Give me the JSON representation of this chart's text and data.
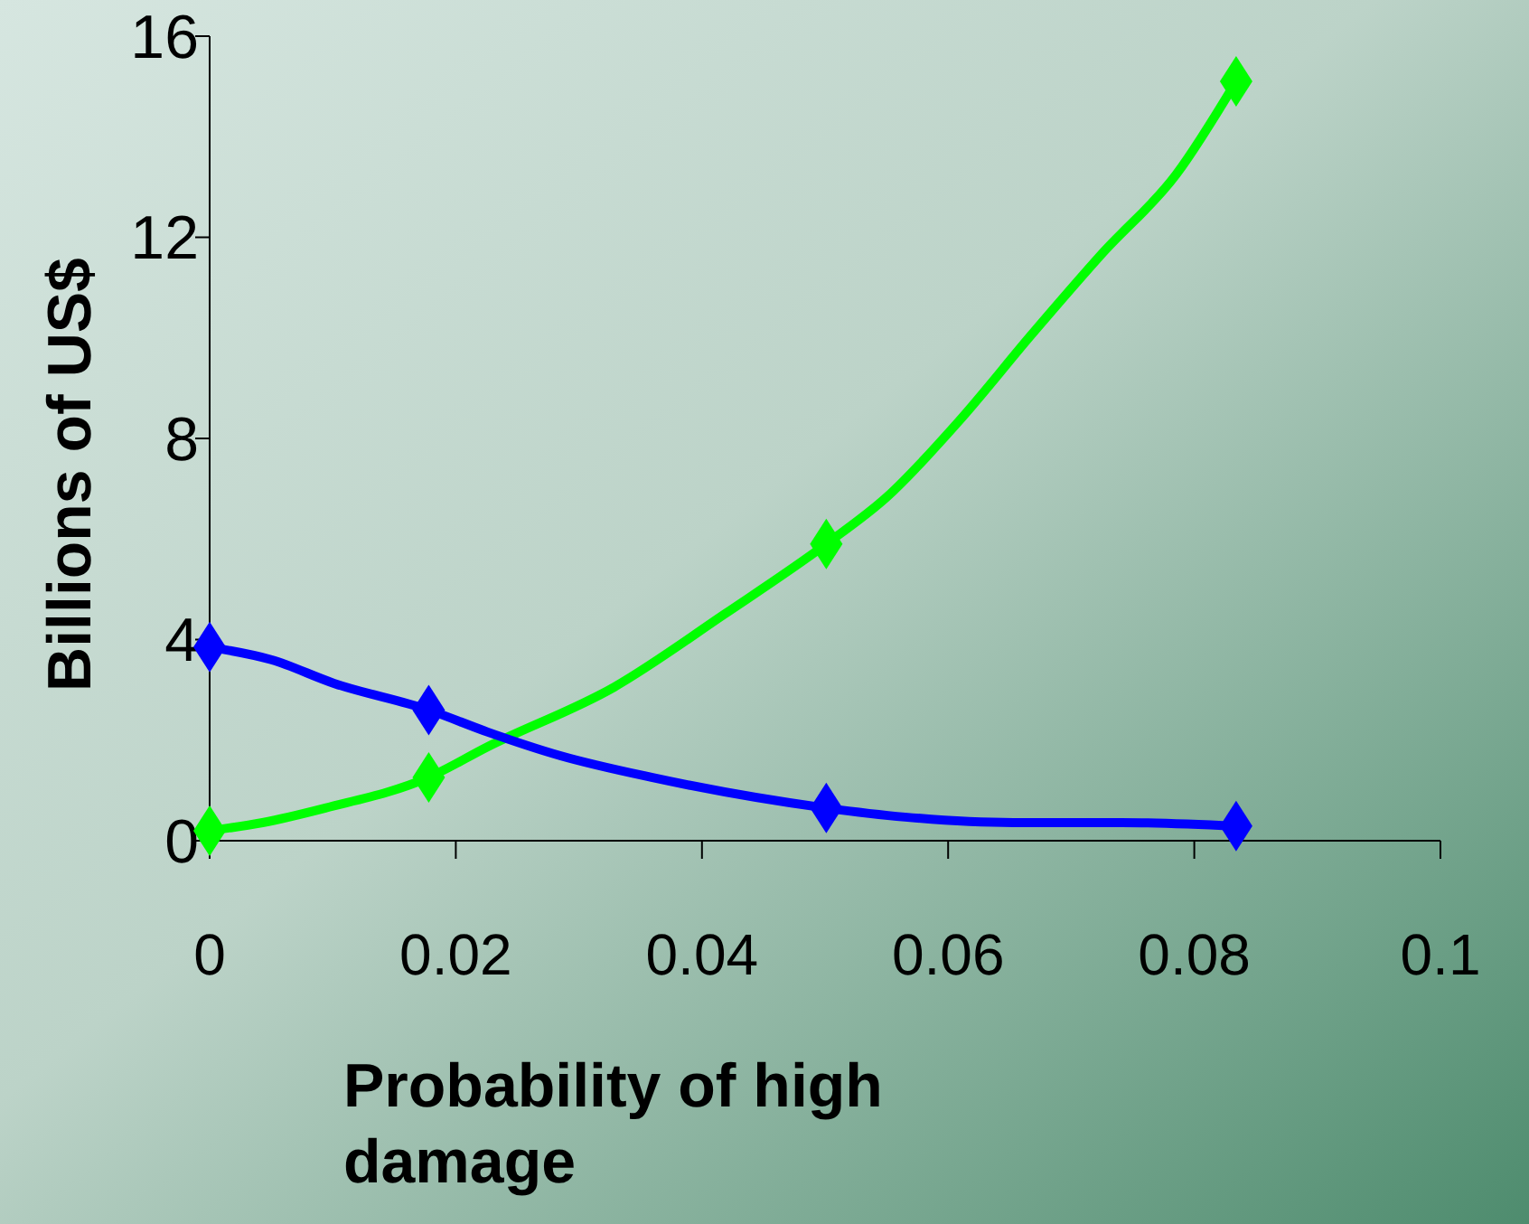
{
  "chart_data": {
    "type": "line",
    "xlabel": "Probability of high damage",
    "ylabel": "Billions of US$",
    "xlim": [
      0,
      0.1
    ],
    "xticks": [
      0,
      0.02,
      0.04,
      0.06,
      0.08,
      0.1
    ],
    "ylim": [
      0,
      16
    ],
    "yticks": [
      0,
      4,
      8,
      12,
      16
    ],
    "grid": false,
    "line_style": "solid",
    "series": [
      {
        "marker": "none",
        "color": "#00ff00",
        "x": [
          0,
          0.0043,
          0.0094,
          0.0178,
          0.0226,
          0.0329,
          0.0418,
          0.0501,
          0.055,
          0.0609,
          0.0668,
          0.0726,
          0.0785,
          0.0834
        ],
        "values": [
          0.2,
          0.36,
          0.65,
          1.26,
          1.87,
          3.06,
          4.5,
          5.9,
          6.83,
          8.35,
          10.07,
          11.7,
          13.24,
          15.1
        ]
      },
      {
        "marker": "none",
        "color": "#0000ff",
        "x": [
          0,
          0.005,
          0.0101,
          0.0178,
          0.0226,
          0.0285,
          0.0359,
          0.0501,
          0.0565,
          0.0653,
          0.0741,
          0.0834
        ],
        "values": [
          3.85,
          3.6,
          3.13,
          2.6,
          2.16,
          1.69,
          1.26,
          0.65,
          0.47,
          0.36,
          0.36,
          0.29
        ]
      },
      {
        "type": "scatter",
        "marker": "diamond",
        "color": "#00ff00",
        "x": [
          0,
          0.0178,
          0.0501,
          0.0834
        ],
        "values": [
          0.2,
          1.26,
          5.9,
          15.1
        ]
      },
      {
        "type": "scatter",
        "marker": "diamond",
        "color": "#0000ff",
        "x": [
          0,
          0.0178,
          0.0501,
          0.0834
        ],
        "values": [
          3.85,
          2.6,
          0.65,
          0.29
        ]
      }
    ]
  }
}
